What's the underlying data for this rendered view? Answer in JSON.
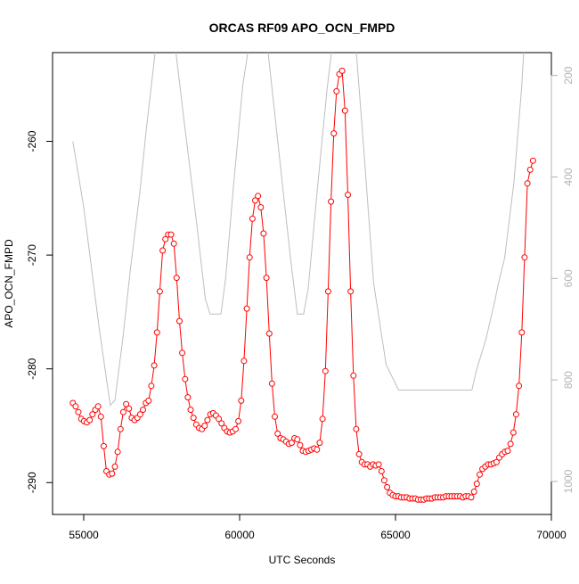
{
  "chart_data": {
    "type": "line",
    "title": "ORCAS RF09 APO_OCN_FMPD",
    "xlabel": "UTC Seconds",
    "ylabel": "APO_OCN_FMPD",
    "y2label": "",
    "xlim": [
      54000,
      70000
    ],
    "ylim": [
      -292.8,
      -252.2
    ],
    "y2lim": [
      155,
      1065
    ],
    "y2_reversed": true,
    "x_ticks": [
      55000,
      60000,
      65000,
      70000
    ],
    "y_ticks": [
      -290,
      -280,
      -270,
      -260
    ],
    "y2_ticks": [
      200,
      400,
      600,
      800,
      1000
    ],
    "grid": false,
    "series": [
      {
        "color": "#ff0000",
        "marker": "open-circle",
        "axis": "left",
        "x": [
          54650,
          54740,
          54830,
          54920,
          55010,
          55100,
          55190,
          55280,
          55370,
          55460,
          55550,
          55640,
          55730,
          55820,
          55910,
          56000,
          56090,
          56180,
          56270,
          56360,
          56450,
          56540,
          56630,
          56720,
          56810,
          56900,
          56990,
          57080,
          57170,
          57260,
          57350,
          57440,
          57530,
          57620,
          57710,
          57800,
          57890,
          57980,
          58070,
          58160,
          58250,
          58340,
          58430,
          58520,
          58610,
          58700,
          58790,
          58880,
          58970,
          59060,
          59150,
          59240,
          59330,
          59420,
          59510,
          59600,
          59690,
          59780,
          59870,
          59960,
          60050,
          60140,
          60230,
          60320,
          60410,
          60500,
          60590,
          60680,
          60770,
          60860,
          60950,
          61040,
          61130,
          61220,
          61310,
          61400,
          61490,
          61580,
          61670,
          61760,
          61850,
          61940,
          62030,
          62120,
          62210,
          62300,
          62390,
          62480,
          62570,
          62660,
          62750,
          62840,
          62930,
          63020,
          63110,
          63200,
          63290,
          63380,
          63470,
          63560,
          63650,
          63740,
          63830,
          63920,
          64010,
          64100,
          64190,
          64280,
          64370,
          64460,
          64550,
          64640,
          64730,
          64820,
          64910,
          65000,
          65090,
          65180,
          65270,
          65360,
          65450,
          65540,
          65630,
          65720,
          65810,
          65900,
          65990,
          66080,
          66170,
          66260,
          66350,
          66440,
          66530,
          66620,
          66710,
          66800,
          66890,
          66980,
          67070,
          67160,
          67250,
          67340,
          67430,
          67520,
          67610,
          67700,
          67790,
          67880,
          67970,
          68060,
          68150,
          68240,
          68330,
          68420,
          68510,
          68600,
          68690,
          68780,
          68870,
          68960,
          69050,
          69140,
          69230,
          69320,
          69410
        ],
        "y": [
          -283,
          -283.3,
          -283.8,
          -284.4,
          -284.6,
          -284.7,
          -284.5,
          -284,
          -283.6,
          -283.3,
          -284.2,
          -286.8,
          -289,
          -289.3,
          -289.2,
          -288.6,
          -287.3,
          -285.3,
          -283.8,
          -283.1,
          -283.5,
          -284.3,
          -284.5,
          -284.3,
          -284,
          -283.6,
          -283,
          -282.8,
          -281.5,
          -279.7,
          -276.8,
          -273.2,
          -269.6,
          -268.6,
          -268.2,
          -268.2,
          -269,
          -272,
          -275.8,
          -278.6,
          -280.9,
          -282.5,
          -283.6,
          -284.3,
          -284.9,
          -285.2,
          -285.3,
          -285,
          -284.5,
          -284,
          -283.9,
          -284.1,
          -284.4,
          -284.8,
          -285.2,
          -285.5,
          -285.6,
          -285.5,
          -285.3,
          -284.6,
          -282.8,
          -279.3,
          -274.7,
          -270.2,
          -266.8,
          -265.2,
          -264.8,
          -265.8,
          -268.1,
          -272,
          -276.9,
          -281.3,
          -284.2,
          -285.7,
          -286.1,
          -286.2,
          -286.4,
          -286.6,
          -286.5,
          -286.1,
          -286.2,
          -286.7,
          -287.2,
          -287.3,
          -287.2,
          -287.1,
          -287,
          -287.1,
          -286.5,
          -284.4,
          -280.2,
          -273.2,
          -265.3,
          -259.3,
          -255.6,
          -254.1,
          -253.8,
          -257.3,
          -264.7,
          -273.2,
          -280.6,
          -285.3,
          -287.5,
          -288.2,
          -288.4,
          -288.4,
          -288.6,
          -288.4,
          -288.5,
          -288.4,
          -289,
          -289.8,
          -290.4,
          -290.9,
          -291.1,
          -291.2,
          -291.2,
          -291.3,
          -291.3,
          -291.3,
          -291.4,
          -291.4,
          -291.4,
          -291.5,
          -291.5,
          -291.5,
          -291.4,
          -291.4,
          -291.4,
          -291.3,
          -291.3,
          -291.3,
          -291.3,
          -291.2,
          -291.2,
          -291.2,
          -291.2,
          -291.2,
          -291.2,
          -291.3,
          -291.2,
          -291.2,
          -291.3,
          -290.8,
          -290.1,
          -289.3,
          -288.8,
          -288.6,
          -288.4,
          -288.4,
          -288.3,
          -288.2,
          -287.8,
          -287.5,
          -287.3,
          -287.2,
          -286.6,
          -285.6,
          -284,
          -281.5,
          -276.8,
          -270.2,
          -263.7,
          -262.5,
          -261.7
        ]
      },
      {
        "color": "#bebebe",
        "marker": "none",
        "axis": "right",
        "x": [
          54650,
          55000,
          55500,
          55850,
          56000,
          56250,
          56500,
          56800,
          57000,
          57300,
          57600,
          57850,
          58200,
          58600,
          58900,
          59050,
          59200,
          59400,
          59550,
          59800,
          60100,
          60400,
          60600,
          60850,
          61100,
          61400,
          61650,
          61850,
          62050,
          62200,
          62500,
          62800,
          63050,
          63250,
          63500,
          63700,
          63950,
          64300,
          64700,
          65100,
          65500,
          66000,
          66500,
          67000,
          67450,
          67600,
          67900,
          68200,
          68300,
          68500,
          68800,
          69050,
          69150,
          69300
        ],
        "y": [
          330,
          460,
          700,
          850,
          840,
          720,
          580,
          430,
          310,
          150,
          80,
          100,
          280,
          480,
          640,
          670,
          670,
          670,
          600,
          420,
          220,
          100,
          70,
          120,
          260,
          430,
          570,
          670,
          670,
          620,
          420,
          230,
          100,
          70,
          60,
          120,
          320,
          610,
          770,
          820,
          820,
          820,
          820,
          820,
          820,
          780,
          720,
          640,
          610,
          560,
          410,
          220,
          110,
          50
        ]
      }
    ]
  }
}
